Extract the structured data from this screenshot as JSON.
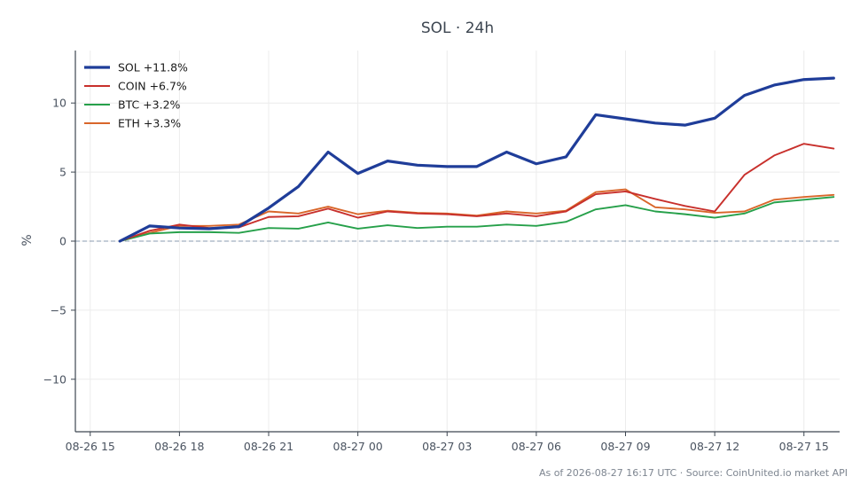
{
  "chart_data": {
    "type": "line",
    "title": "SOL · 24h",
    "ylabel": "%",
    "xlabel": "",
    "xlim": [
      -0.5,
      25.2
    ],
    "ylim": [
      -13.8,
      13.8
    ],
    "yticks": [
      -10,
      -5,
      0,
      5,
      10
    ],
    "yticklabels": [
      "−10",
      "−5",
      "0",
      "5",
      "10"
    ],
    "xticks": [
      {
        "x": 0,
        "label": "08-26 15"
      },
      {
        "x": 3,
        "label": "08-26 18"
      },
      {
        "x": 6,
        "label": "08-26 21"
      },
      {
        "x": 9,
        "label": "08-27 00"
      },
      {
        "x": 12,
        "label": "08-27 03"
      },
      {
        "x": 15,
        "label": "08-27 06"
      },
      {
        "x": 18,
        "label": "08-27 09"
      },
      {
        "x": 21,
        "label": "08-27 12"
      },
      {
        "x": 24,
        "label": "08-27 15"
      }
    ],
    "x": [
      1,
      2,
      3,
      4,
      5,
      6,
      7,
      8,
      9,
      10,
      11,
      12,
      13,
      14,
      15,
      16,
      17,
      18,
      19,
      20,
      21,
      22,
      23,
      24,
      25
    ],
    "baseline": 0,
    "grid": true,
    "legend_position": "top-left",
    "series": [
      {
        "name": "SOL +11.8%",
        "color": "#1f3d99",
        "width": 3.2,
        "values": [
          0,
          1.1,
          0.95,
          0.9,
          1.05,
          2.4,
          3.95,
          6.45,
          4.9,
          5.8,
          5.5,
          5.4,
          5.4,
          6.45,
          5.6,
          6.1,
          9.15,
          8.85,
          8.55,
          8.4,
          8.9,
          10.55,
          11.3,
          11.7,
          11.8
        ]
      },
      {
        "name": "COIN +6.7%",
        "color": "#c8302c",
        "width": 1.9,
        "values": [
          0,
          0.75,
          1.2,
          0.95,
          1.0,
          1.75,
          1.8,
          2.35,
          1.7,
          2.15,
          2.0,
          1.95,
          1.8,
          2.0,
          1.8,
          2.15,
          3.4,
          3.6,
          3.05,
          2.55,
          2.15,
          4.8,
          6.2,
          7.05,
          6.7
        ]
      },
      {
        "name": "BTC +3.2%",
        "color": "#26a04a",
        "width": 1.9,
        "values": [
          0,
          0.55,
          0.65,
          0.65,
          0.6,
          0.95,
          0.9,
          1.35,
          0.9,
          1.15,
          0.95,
          1.05,
          1.05,
          1.2,
          1.1,
          1.4,
          2.3,
          2.6,
          2.15,
          1.95,
          1.7,
          2.0,
          2.8,
          3.0,
          3.2
        ]
      },
      {
        "name": "ETH +3.3%",
        "color": "#d9662a",
        "width": 1.9,
        "values": [
          0,
          0.6,
          1.1,
          1.1,
          1.2,
          2.15,
          2.0,
          2.5,
          1.95,
          2.2,
          2.05,
          2.0,
          1.85,
          2.15,
          2.0,
          2.2,
          3.55,
          3.75,
          2.45,
          2.3,
          2.05,
          2.15,
          3.0,
          3.2,
          3.35
        ]
      }
    ]
  },
  "footer": {
    "text": "As of 2026-08-27 16:17 UTC · Source: CoinUnited.io market API"
  }
}
